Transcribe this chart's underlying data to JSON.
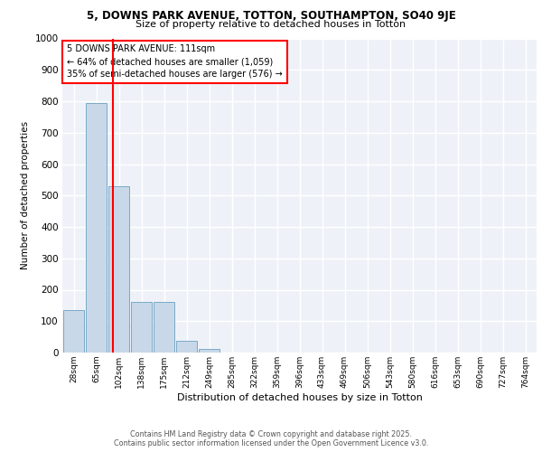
{
  "title_line1": "5, DOWNS PARK AVENUE, TOTTON, SOUTHAMPTON, SO40 9JE",
  "title_line2": "Size of property relative to detached houses in Totton",
  "xlabel": "Distribution of detached houses by size in Totton",
  "ylabel": "Number of detached properties",
  "categories": [
    "28sqm",
    "65sqm",
    "102sqm",
    "138sqm",
    "175sqm",
    "212sqm",
    "249sqm",
    "285sqm",
    "322sqm",
    "359sqm",
    "396sqm",
    "433sqm",
    "469sqm",
    "506sqm",
    "543sqm",
    "580sqm",
    "616sqm",
    "653sqm",
    "690sqm",
    "727sqm",
    "764sqm"
  ],
  "values": [
    135,
    795,
    530,
    160,
    160,
    38,
    12,
    0,
    0,
    0,
    0,
    0,
    0,
    0,
    0,
    0,
    0,
    0,
    0,
    0,
    0
  ],
  "bar_color": "#c8d8e8",
  "bar_edge_color": "#7aaac8",
  "vline_color": "red",
  "vline_xdata": 1.75,
  "ylim": [
    0,
    1000
  ],
  "yticks": [
    0,
    100,
    200,
    300,
    400,
    500,
    600,
    700,
    800,
    900,
    1000
  ],
  "annotation_title": "5 DOWNS PARK AVENUE: 111sqm",
  "annotation_line1": "← 64% of detached houses are smaller (1,059)",
  "annotation_line2": "35% of semi-detached houses are larger (576) →",
  "annotation_box_color": "red",
  "bg_color": "#eef2f8",
  "grid_color": "white",
  "footer_line1": "Contains HM Land Registry data © Crown copyright and database right 2025.",
  "footer_line2": "Contains public sector information licensed under the Open Government Licence v3.0."
}
